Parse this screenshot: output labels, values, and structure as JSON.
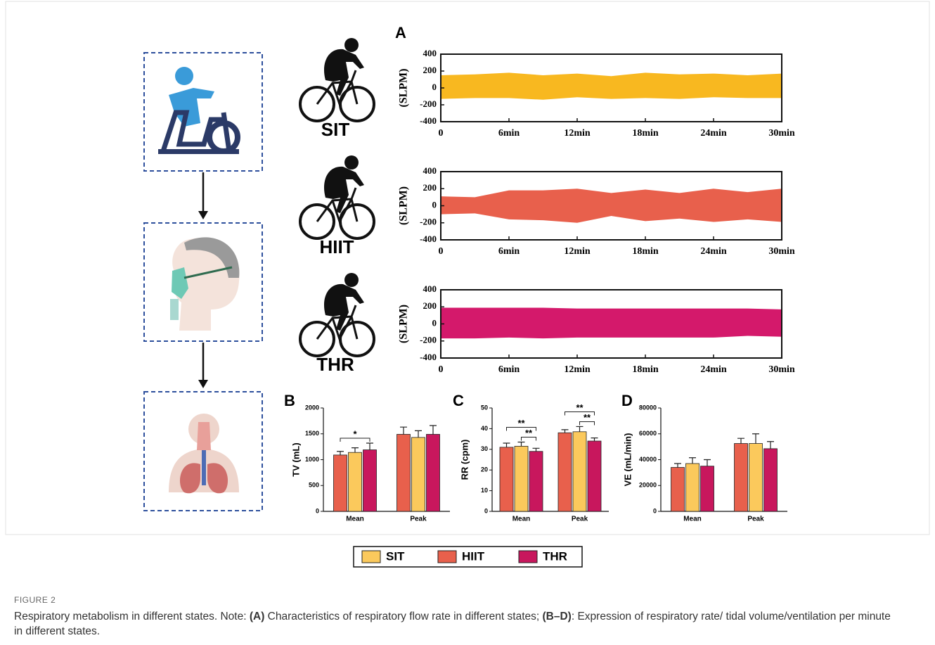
{
  "figure": {
    "panel_labels": [
      "A",
      "B",
      "C",
      "D"
    ],
    "activities": [
      "SIT",
      "HIIT",
      "THR"
    ]
  },
  "chart_data": [
    {
      "type": "signal",
      "ylabel": "(SLPM)",
      "color": "#f8b820",
      "x": [
        0,
        3,
        6,
        9,
        12,
        15,
        18,
        21,
        24,
        27,
        30
      ],
      "upper": [
        150,
        160,
        180,
        150,
        170,
        140,
        180,
        160,
        170,
        150,
        170
      ],
      "lower": [
        -130,
        -120,
        -120,
        -140,
        -110,
        -130,
        -120,
        -130,
        -110,
        -120,
        -120
      ],
      "xlim": [
        0,
        30
      ],
      "xticks": [
        0,
        {
          "value": 6,
          "label": "6min"
        },
        {
          "value": 12,
          "label": "12min"
        },
        {
          "value": 18,
          "label": "18min"
        },
        {
          "value": 24,
          "label": "24min"
        },
        {
          "value": 30,
          "label": "30min"
        }
      ],
      "ylim": [
        -400,
        400
      ],
      "yticks": [
        -400,
        -200,
        0,
        200,
        400
      ]
    },
    {
      "type": "signal",
      "ylabel": "(SLPM)",
      "color": "#e8604c",
      "x": [
        0,
        3,
        6,
        9,
        12,
        15,
        18,
        21,
        24,
        27,
        30
      ],
      "upper": [
        110,
        100,
        180,
        180,
        200,
        150,
        190,
        150,
        200,
        160,
        200
      ],
      "lower": [
        -100,
        -90,
        -160,
        -170,
        -200,
        -120,
        -180,
        -150,
        -190,
        -160,
        -190
      ],
      "xlim": [
        0,
        30
      ],
      "xticks": [
        0,
        {
          "value": 6,
          "label": "6min"
        },
        {
          "value": 12,
          "label": "12min"
        },
        {
          "value": 18,
          "label": "18min"
        },
        {
          "value": 24,
          "label": "24min"
        },
        {
          "value": 30,
          "label": "30min"
        }
      ],
      "ylim": [
        -400,
        400
      ],
      "yticks": [
        -400,
        -200,
        0,
        200,
        400
      ]
    },
    {
      "type": "signal",
      "ylabel": "(SLPM)",
      "color": "#d4196b",
      "x": [
        0,
        3,
        6,
        9,
        12,
        15,
        18,
        21,
        24,
        27,
        30
      ],
      "upper": [
        190,
        190,
        190,
        190,
        180,
        180,
        180,
        180,
        180,
        180,
        170
      ],
      "lower": [
        -170,
        -170,
        -160,
        -170,
        -160,
        -160,
        -160,
        -160,
        -160,
        -140,
        -150
      ],
      "xlim": [
        0,
        30
      ],
      "xticks": [
        0,
        {
          "value": 6,
          "label": "6min"
        },
        {
          "value": 12,
          "label": "12min"
        },
        {
          "value": 18,
          "label": "18min"
        },
        {
          "value": 24,
          "label": "24min"
        },
        {
          "value": 30,
          "label": "30min"
        }
      ],
      "ylim": [
        -400,
        400
      ],
      "yticks": [
        -400,
        -200,
        0,
        200,
        400
      ]
    },
    {
      "type": "bar",
      "ylabel": "TV (mL)",
      "categories": [
        "Mean",
        "Peak"
      ],
      "series": [
        {
          "name": "SIT",
          "color": "#fbc95c",
          "values": [
            1140,
            1430
          ],
          "errors": [
            90,
            130
          ]
        },
        {
          "name": "HIIT",
          "color": "#e8604c",
          "values": [
            1090,
            1490
          ],
          "errors": [
            70,
            140
          ]
        },
        {
          "name": "THR",
          "color": "#c8175d",
          "values": [
            1190,
            1490
          ],
          "errors": [
            130,
            170
          ]
        }
      ],
      "ylim": [
        0,
        2000
      ],
      "yticks": [
        0,
        500,
        1000,
        1500,
        2000
      ],
      "annotations": [
        {
          "label": "*",
          "category": "Mean",
          "between": [
            "HIIT",
            "THR"
          ]
        }
      ]
    },
    {
      "type": "bar",
      "ylabel": "RR (cpm)",
      "categories": [
        "Mean",
        "Peak"
      ],
      "series": [
        {
          "name": "SIT",
          "color": "#fbc95c",
          "values": [
            31.5,
            38.5
          ],
          "errors": [
            2,
            2.5
          ]
        },
        {
          "name": "HIIT",
          "color": "#e8604c",
          "values": [
            31,
            38
          ],
          "errors": [
            2,
            1.5
          ]
        },
        {
          "name": "THR",
          "color": "#c8175d",
          "values": [
            29,
            34
          ],
          "errors": [
            1.5,
            1.5
          ]
        }
      ],
      "ylim": [
        0,
        50
      ],
      "yticks": [
        0,
        10,
        20,
        30,
        40,
        50
      ],
      "annotations": [
        {
          "label": "**",
          "category": "Mean",
          "between": [
            "SIT",
            "THR"
          ]
        },
        {
          "label": "**",
          "category": "Mean",
          "between": [
            "HIIT",
            "THR"
          ]
        },
        {
          "label": "**",
          "category": "Peak",
          "between": [
            "SIT",
            "THR"
          ]
        },
        {
          "label": "**",
          "category": "Peak",
          "between": [
            "HIIT",
            "THR"
          ]
        }
      ]
    },
    {
      "type": "bar",
      "ylabel": "VE (mL/min)",
      "categories": [
        "Mean",
        "Peak"
      ],
      "series": [
        {
          "name": "SIT",
          "color": "#fbc95c",
          "values": [
            37000,
            52500
          ],
          "errors": [
            4500,
            7500
          ]
        },
        {
          "name": "HIIT",
          "color": "#e8604c",
          "values": [
            34000,
            52500
          ],
          "errors": [
            3000,
            4000
          ]
        },
        {
          "name": "THR",
          "color": "#c8175d",
          "values": [
            35000,
            48500
          ],
          "errors": [
            5000,
            5500
          ]
        }
      ],
      "ylim": [
        0,
        80000
      ],
      "yticks": [
        0,
        20000,
        40000,
        60000,
        80000
      ],
      "annotations": []
    }
  ],
  "caption": {
    "label": "FIGURE 2",
    "parts": [
      "Respiratory metabolism in different states. Note: ",
      "(A)",
      " Characteristics of respiratory flow rate in different states; ",
      "(B–D)",
      ": Expression of respiratory rate/ tidal volume/ventilation per minute in different states."
    ]
  }
}
